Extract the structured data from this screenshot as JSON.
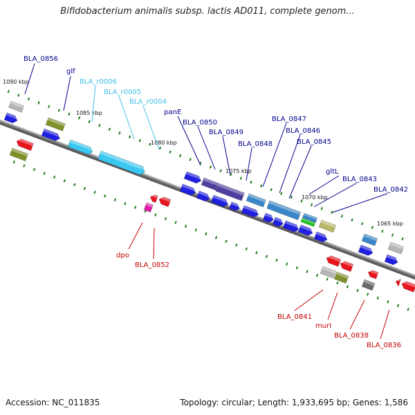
{
  "title": "Bifidobacterium animalis subsp. lactis AD011, complete genom...",
  "footer": {
    "accession": "Accession: NC_011835",
    "topology": "Topology: circular; Length: 1,933,695 bp; Genes: 1,586"
  },
  "colors": {
    "backbone": "#7a7a7a",
    "cds": "#1f1fe0",
    "rna": "#3ac8f0",
    "olive": "#7f8f2a",
    "gray": "#b5b5b5",
    "purple": "#4f3f9f",
    "steel": "#3a86c8",
    "red": "#e8141e",
    "magenta": "#e01aa8",
    "green": "#22c422",
    "khaki": "#b8b868",
    "darkgray": "#6a6a6a",
    "tick": "#1a7a1a",
    "label_top": "#00008b",
    "label_rna": "#40c0e8",
    "label_bottom": "#c00000"
  },
  "scale_labels": [
    "1090 kbp",
    "1085 kbp",
    "1080 kbp",
    "1075 kbp",
    "1070 kbp",
    "1065 kbp"
  ],
  "top_labels": [
    {
      "text": "BLA_0856",
      "kind": "cds"
    },
    {
      "text": "glf",
      "kind": "cds"
    },
    {
      "text": "BLA_r0006",
      "kind": "rna"
    },
    {
      "text": "BLA_r0005",
      "kind": "rna"
    },
    {
      "text": "BLA_r0004",
      "kind": "rna"
    },
    {
      "text": "panE",
      "kind": "cds"
    },
    {
      "text": "BLA_0850",
      "kind": "cds"
    },
    {
      "text": "BLA_0849",
      "kind": "cds"
    },
    {
      "text": "BLA_0848",
      "kind": "cds"
    },
    {
      "text": "BLA_0847",
      "kind": "cds"
    },
    {
      "text": "BLA_0846",
      "kind": "cds"
    },
    {
      "text": "BLA_0845",
      "kind": "cds"
    },
    {
      "text": "gltL",
      "kind": "cds"
    },
    {
      "text": "BLA_0843",
      "kind": "cds"
    },
    {
      "text": "BLA_0842",
      "kind": "cds"
    }
  ],
  "bottom_labels": [
    {
      "text": "dpo"
    },
    {
      "text": "BLA_0852"
    },
    {
      "text": "BLA_0841"
    },
    {
      "text": "murI"
    },
    {
      "text": "BLA_0838"
    },
    {
      "text": "BLA_0836"
    }
  ]
}
